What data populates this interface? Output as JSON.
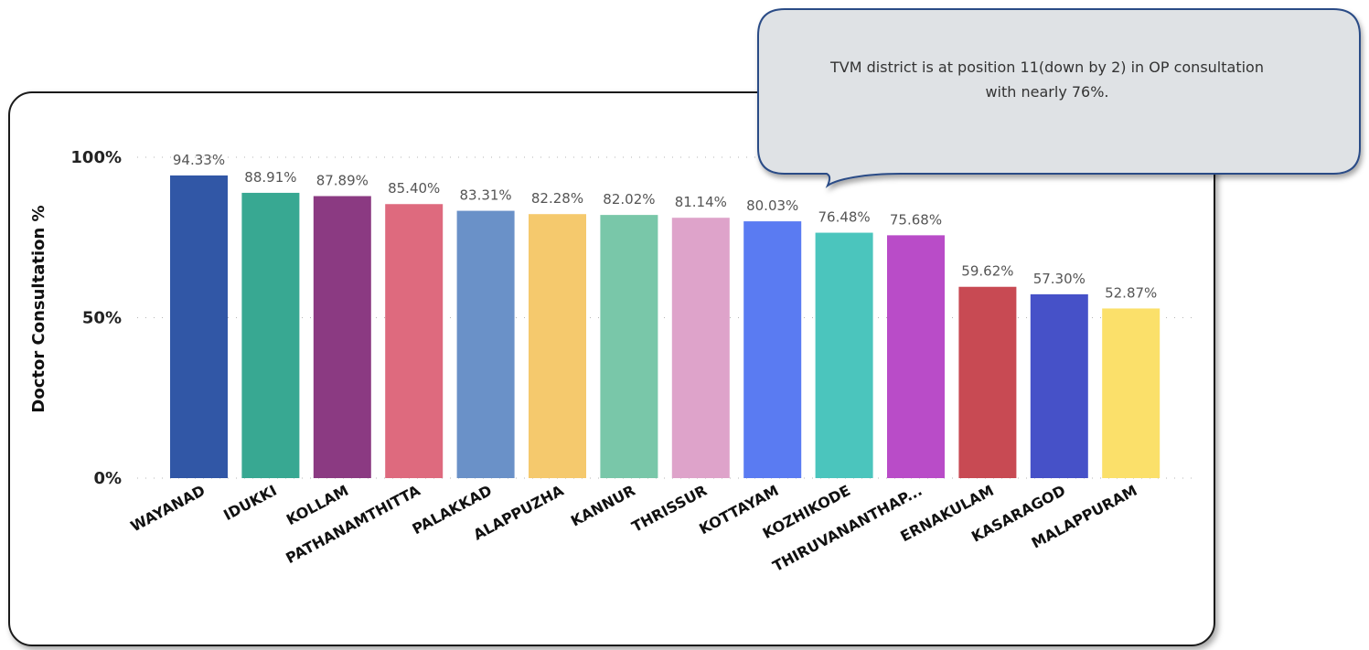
{
  "chart_data": {
    "type": "bar",
    "ylabel": "Doctor Consultation %",
    "y_ticks": [
      "0%",
      "50%",
      "100%"
    ],
    "ylim": [
      0,
      100
    ],
    "grid": "horizontal dotted",
    "categories": [
      "WAYANAD",
      "IDUKKI",
      "KOLLAM",
      "PATHANAMTHITTA",
      "PALAKKAD",
      "ALAPPUZHA",
      "KANNUR",
      "THRISSUR",
      "KOTTAYAM",
      "KOZHIKODE",
      "THIRUVANANTHAP...",
      "ERNAKULAM",
      "KASARAGOD",
      "MALAPPURAM"
    ],
    "values": [
      94.33,
      88.91,
      87.89,
      85.4,
      83.31,
      82.28,
      82.02,
      81.14,
      80.03,
      76.48,
      75.68,
      59.62,
      57.3,
      52.87
    ],
    "value_labels": [
      "94.33%",
      "88.91%",
      "87.89%",
      "85.40%",
      "83.31%",
      "82.28%",
      "82.02%",
      "81.14%",
      "80.03%",
      "76.48%",
      "75.68%",
      "59.62%",
      "57.30%",
      "52.87%"
    ],
    "colors": [
      "#3157A6",
      "#38A892",
      "#8B3A82",
      "#DE6A7E",
      "#6A91C8",
      "#F5C96D",
      "#79C7A9",
      "#DEA3CA",
      "#5A7BF2",
      "#4BC5BD",
      "#B94CC8",
      "#C84A53",
      "#4651C8",
      "#FBE06A"
    ]
  },
  "callout": {
    "text": "TVM district is at position 11(down by 2) in OP consultation with nearly 76%."
  }
}
